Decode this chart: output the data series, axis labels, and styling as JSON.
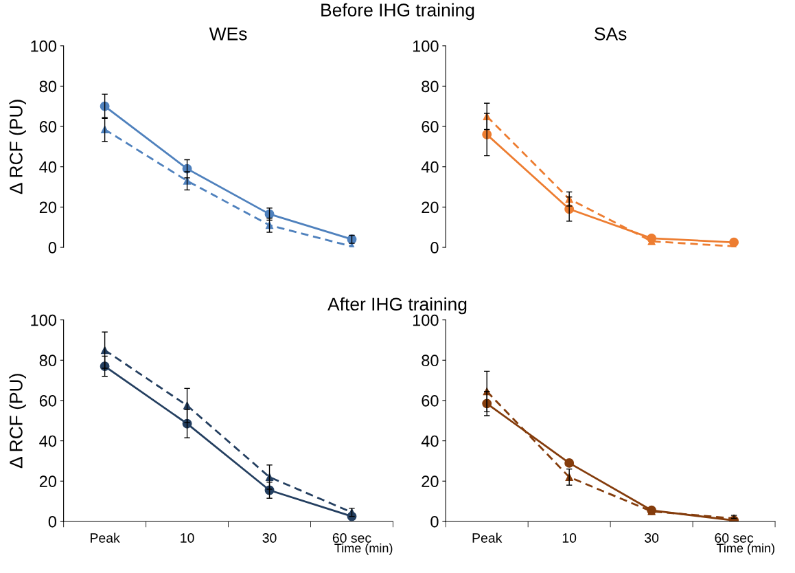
{
  "chart_data": [
    {
      "type": "line",
      "title": "WEs",
      "ylabel": "Δ RCF (PU)",
      "annotations": [
        "Before IHG training"
      ],
      "categories": [
        null,
        null,
        null,
        null
      ],
      "tick_labels": "y",
      "ylim": [
        0,
        100
      ],
      "yticks": [
        0,
        20,
        40,
        60,
        80,
        100
      ],
      "series": [
        {
          "color": "#4f81bd",
          "marker": "circle",
          "line_style": "solid",
          "values": [
            70,
            39,
            16.5,
            4
          ],
          "errors": [
            6,
            4.5,
            3,
            2
          ]
        },
        {
          "color": "#4f81bd",
          "marker": "triangle",
          "line_style": "dashed",
          "values": [
            58.5,
            33,
            11,
            0.5
          ],
          "errors": [
            6,
            4.5,
            3.5,
            null
          ]
        }
      ]
    },
    {
      "type": "line",
      "title": "SAs",
      "categories": [
        null,
        null,
        null,
        null
      ],
      "tick_labels": "y",
      "ylim": [
        0,
        100
      ],
      "yticks": [
        0,
        20,
        40,
        60,
        80,
        100
      ],
      "series": [
        {
          "color": "#ed7d31",
          "marker": "circle",
          "line_style": "solid",
          "values": [
            56,
            19,
            4.5,
            2.5
          ],
          "errors": [
            10.5,
            6,
            null,
            null
          ]
        },
        {
          "color": "#ed7d31",
          "marker": "triangle",
          "line_style": "dashed",
          "values": [
            65,
            24,
            3,
            0.5
          ],
          "errors": [
            6.5,
            3.5,
            null,
            null
          ]
        }
      ]
    },
    {
      "type": "line",
      "ylabel": "Δ RCF (PU)",
      "xlabel": "Time (min)",
      "annotations": [
        "After IHG training"
      ],
      "categories": [
        "Peak",
        "10",
        "30",
        "60 sec"
      ],
      "ylim": [
        0,
        100
      ],
      "yticks": [
        0,
        20,
        40,
        60,
        80,
        100
      ],
      "series": [
        {
          "color": "#243f60",
          "marker": "circle",
          "line_style": "solid",
          "values": [
            77,
            48.5,
            15.5,
            2.5
          ],
          "errors": [
            5,
            7,
            4,
            null
          ]
        },
        {
          "color": "#243f60",
          "marker": "triangle",
          "line_style": "dashed",
          "values": [
            85,
            57.5,
            22,
            4.5
          ],
          "errors": [
            9,
            8.5,
            6,
            2
          ]
        }
      ]
    },
    {
      "type": "line",
      "xlabel": "Time (min)",
      "categories": [
        "Peak",
        "10",
        "30",
        "60 sec"
      ],
      "ylim": [
        0,
        100
      ],
      "yticks": [
        0,
        20,
        40,
        60,
        80,
        100
      ],
      "series": [
        {
          "color": "#843c0c",
          "marker": "circle",
          "line_style": "solid",
          "values": [
            58.5,
            29,
            5.5,
            0.5
          ],
          "errors": [
            6,
            null,
            null,
            null
          ]
        },
        {
          "color": "#843c0c",
          "marker": "triangle",
          "line_style": "dashed",
          "values": [
            64.5,
            22,
            5,
            1.5
          ],
          "errors": [
            10,
            4,
            null,
            [
              1.5,
              3
            ]
          ]
        }
      ]
    }
  ]
}
